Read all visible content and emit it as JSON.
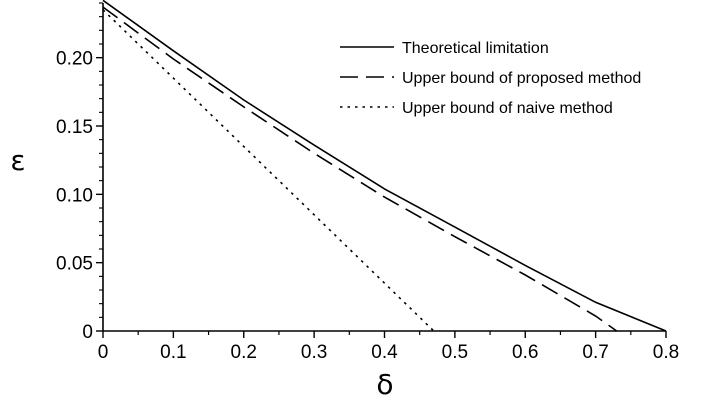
{
  "chart_data": {
    "type": "line",
    "title": "",
    "xlabel": "δ",
    "ylabel": "ε",
    "xlim": [
      0,
      0.8
    ],
    "ylim": [
      0,
      0.24
    ],
    "x_ticks": [
      "0",
      "0.1",
      "0.2",
      "0.3",
      "0.4",
      "0.5",
      "0.6",
      "0.7",
      "0.8"
    ],
    "y_ticks": [
      "0",
      "0.05",
      "0.10",
      "0.15",
      "0.20"
    ],
    "legend_position": "top-right",
    "grid": false,
    "series": [
      {
        "name": "Theoretical limitation",
        "style": "solid",
        "x": [
          0,
          0.1,
          0.2,
          0.3,
          0.4,
          0.5,
          0.6,
          0.7,
          0.8
        ],
        "y": [
          0.242,
          0.205,
          0.169,
          0.136,
          0.104,
          0.076,
          0.048,
          0.021,
          0.0
        ]
      },
      {
        "name": "Upper bound of proposed method",
        "style": "dashed",
        "x": [
          0,
          0.1,
          0.2,
          0.3,
          0.4,
          0.5,
          0.6,
          0.7,
          0.73
        ],
        "y": [
          0.237,
          0.199,
          0.164,
          0.13,
          0.098,
          0.069,
          0.041,
          0.011,
          0.0
        ]
      },
      {
        "name": "Upper bound of naive method",
        "style": "dotted",
        "x": [
          0,
          0.47
        ],
        "y": [
          0.235,
          0.0
        ]
      }
    ]
  }
}
